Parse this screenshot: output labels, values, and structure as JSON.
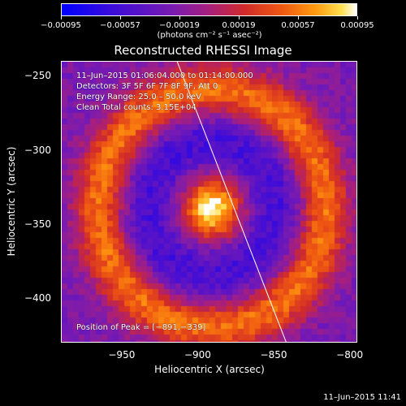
{
  "chart_data": {
    "type": "heatmap",
    "title": "Reconstructed RHESSI Image",
    "xlabel": "Heliocentric X (arcsec)",
    "ylabel": "Heliocentric Y (arcsec)",
    "xlim": [
      -990,
      -795
    ],
    "ylim": [
      -430,
      -240
    ],
    "x_ticks": [
      "−950",
      "−900",
      "−850",
      "−800"
    ],
    "x_tick_values": [
      -950,
      -900,
      -850,
      -800
    ],
    "y_ticks": [
      "−250",
      "−300",
      "−350",
      "−400"
    ],
    "y_tick_values": [
      -250,
      -300,
      -350,
      -400
    ],
    "colorbar": {
      "ticks": [
        "−0.00095",
        "−0.00057",
        "−0.00019",
        "0.00019",
        "0.00057",
        "0.00095"
      ],
      "tick_values": [
        -0.00095,
        -0.00057,
        -0.00019,
        0.00019,
        0.00057,
        0.00095
      ],
      "range": [
        -0.00095,
        0.00095
      ],
      "unit_label": "(photons cm⁻² s⁻¹ asec⁻²)"
    },
    "annotations": {
      "time_range": "11–Jun–2015 01:06:04.000 to 01:14:00.000",
      "detectors": "Detectors: 3F 5F 6F 7F 8F 9F, Att 0",
      "energy": "Energy Range: 25.0 – 50.0 keV",
      "clean": "Clean    Total counts: 3.15E+04",
      "peak": "Position of Peak = [−891,−339]"
    },
    "peak_position": [
      -891,
      -339
    ],
    "limb_line": [
      [
        -914,
        -240
      ],
      [
        -842,
        -430
      ]
    ]
  },
  "footer": {
    "timestamp": "11–Jun–2015 11:41"
  }
}
